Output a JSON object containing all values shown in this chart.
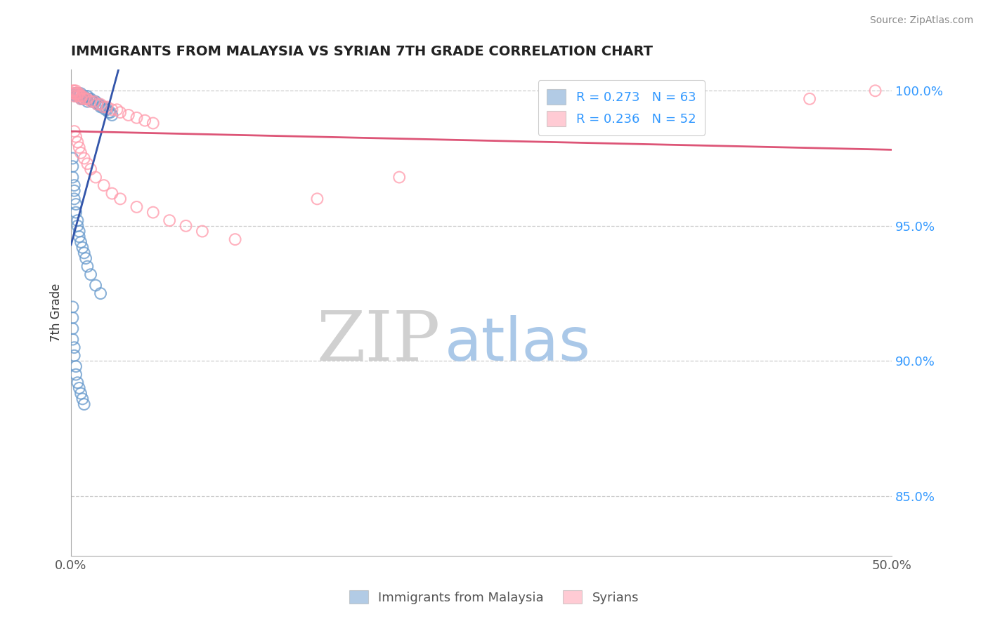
{
  "title": "IMMIGRANTS FROM MALAYSIA VS SYRIAN 7TH GRADE CORRELATION CHART",
  "source_text": "Source: ZipAtlas.com",
  "ylabel": "7th Grade",
  "xlim": [
    0.0,
    0.5
  ],
  "ylim": [
    0.828,
    1.008
  ],
  "xticks": [
    0.0,
    0.1,
    0.2,
    0.3,
    0.4,
    0.5
  ],
  "xticklabels": [
    "0.0%",
    "",
    "",
    "",
    "",
    "50.0%"
  ],
  "yticks": [
    0.85,
    0.9,
    0.95,
    1.0
  ],
  "yticklabels": [
    "85.0%",
    "90.0%",
    "95.0%",
    "100.0%"
  ],
  "legend_malaysia": "Immigrants from Malaysia",
  "legend_syrians": "Syrians",
  "R_malaysia": 0.273,
  "N_malaysia": 63,
  "R_syrians": 0.236,
  "N_syrians": 52,
  "malaysia_color": "#6699cc",
  "syria_color": "#ff99aa",
  "malaysia_line_color": "#3355aa",
  "syria_line_color": "#dd5577",
  "watermark_zip": "ZIP",
  "watermark_atlas": "atlas",
  "watermark_zip_color": "#d0d0d0",
  "watermark_atlas_color": "#aac8e8",
  "malaysia_x": [
    0.002,
    0.003,
    0.003,
    0.004,
    0.004,
    0.005,
    0.005,
    0.006,
    0.006,
    0.007,
    0.007,
    0.008,
    0.009,
    0.01,
    0.01,
    0.011,
    0.012,
    0.013,
    0.014,
    0.015,
    0.016,
    0.017,
    0.018,
    0.019,
    0.02,
    0.021,
    0.022,
    0.023,
    0.024,
    0.025,
    0.001,
    0.001,
    0.001,
    0.002,
    0.002,
    0.002,
    0.003,
    0.003,
    0.004,
    0.004,
    0.005,
    0.005,
    0.006,
    0.007,
    0.008,
    0.009,
    0.01,
    0.012,
    0.015,
    0.018,
    0.001,
    0.001,
    0.001,
    0.001,
    0.002,
    0.002,
    0.003,
    0.003,
    0.004,
    0.005,
    0.006,
    0.007,
    0.008
  ],
  "malaysia_y": [
    0.999,
    0.999,
    0.998,
    0.999,
    0.998,
    0.999,
    0.998,
    0.999,
    0.997,
    0.998,
    0.997,
    0.998,
    0.997,
    0.998,
    0.996,
    0.997,
    0.997,
    0.996,
    0.996,
    0.996,
    0.995,
    0.995,
    0.994,
    0.994,
    0.994,
    0.993,
    0.993,
    0.992,
    0.992,
    0.991,
    0.975,
    0.972,
    0.968,
    0.965,
    0.963,
    0.96,
    0.958,
    0.955,
    0.952,
    0.95,
    0.948,
    0.946,
    0.944,
    0.942,
    0.94,
    0.938,
    0.935,
    0.932,
    0.928,
    0.925,
    0.92,
    0.916,
    0.912,
    0.908,
    0.905,
    0.902,
    0.898,
    0.895,
    0.892,
    0.89,
    0.888,
    0.886,
    0.884
  ],
  "syria_x": [
    0.001,
    0.001,
    0.002,
    0.002,
    0.002,
    0.003,
    0.003,
    0.004,
    0.004,
    0.005,
    0.005,
    0.006,
    0.006,
    0.007,
    0.008,
    0.009,
    0.01,
    0.012,
    0.014,
    0.016,
    0.018,
    0.02,
    0.022,
    0.025,
    0.028,
    0.03,
    0.035,
    0.04,
    0.045,
    0.05,
    0.002,
    0.003,
    0.004,
    0.005,
    0.006,
    0.008,
    0.01,
    0.012,
    0.015,
    0.02,
    0.025,
    0.03,
    0.04,
    0.05,
    0.06,
    0.07,
    0.08,
    0.1,
    0.15,
    0.2,
    0.45,
    0.49
  ],
  "syria_y": [
    1.0,
    0.999,
    1.0,
    0.999,
    0.998,
    1.0,
    0.999,
    0.999,
    0.998,
    0.999,
    0.998,
    0.998,
    0.997,
    0.998,
    0.997,
    0.997,
    0.997,
    0.996,
    0.996,
    0.995,
    0.995,
    0.994,
    0.994,
    0.993,
    0.993,
    0.992,
    0.991,
    0.99,
    0.989,
    0.988,
    0.985,
    0.983,
    0.981,
    0.979,
    0.977,
    0.975,
    0.973,
    0.971,
    0.968,
    0.965,
    0.962,
    0.96,
    0.957,
    0.955,
    0.952,
    0.95,
    0.948,
    0.945,
    0.96,
    0.968,
    0.997,
    1.0
  ]
}
